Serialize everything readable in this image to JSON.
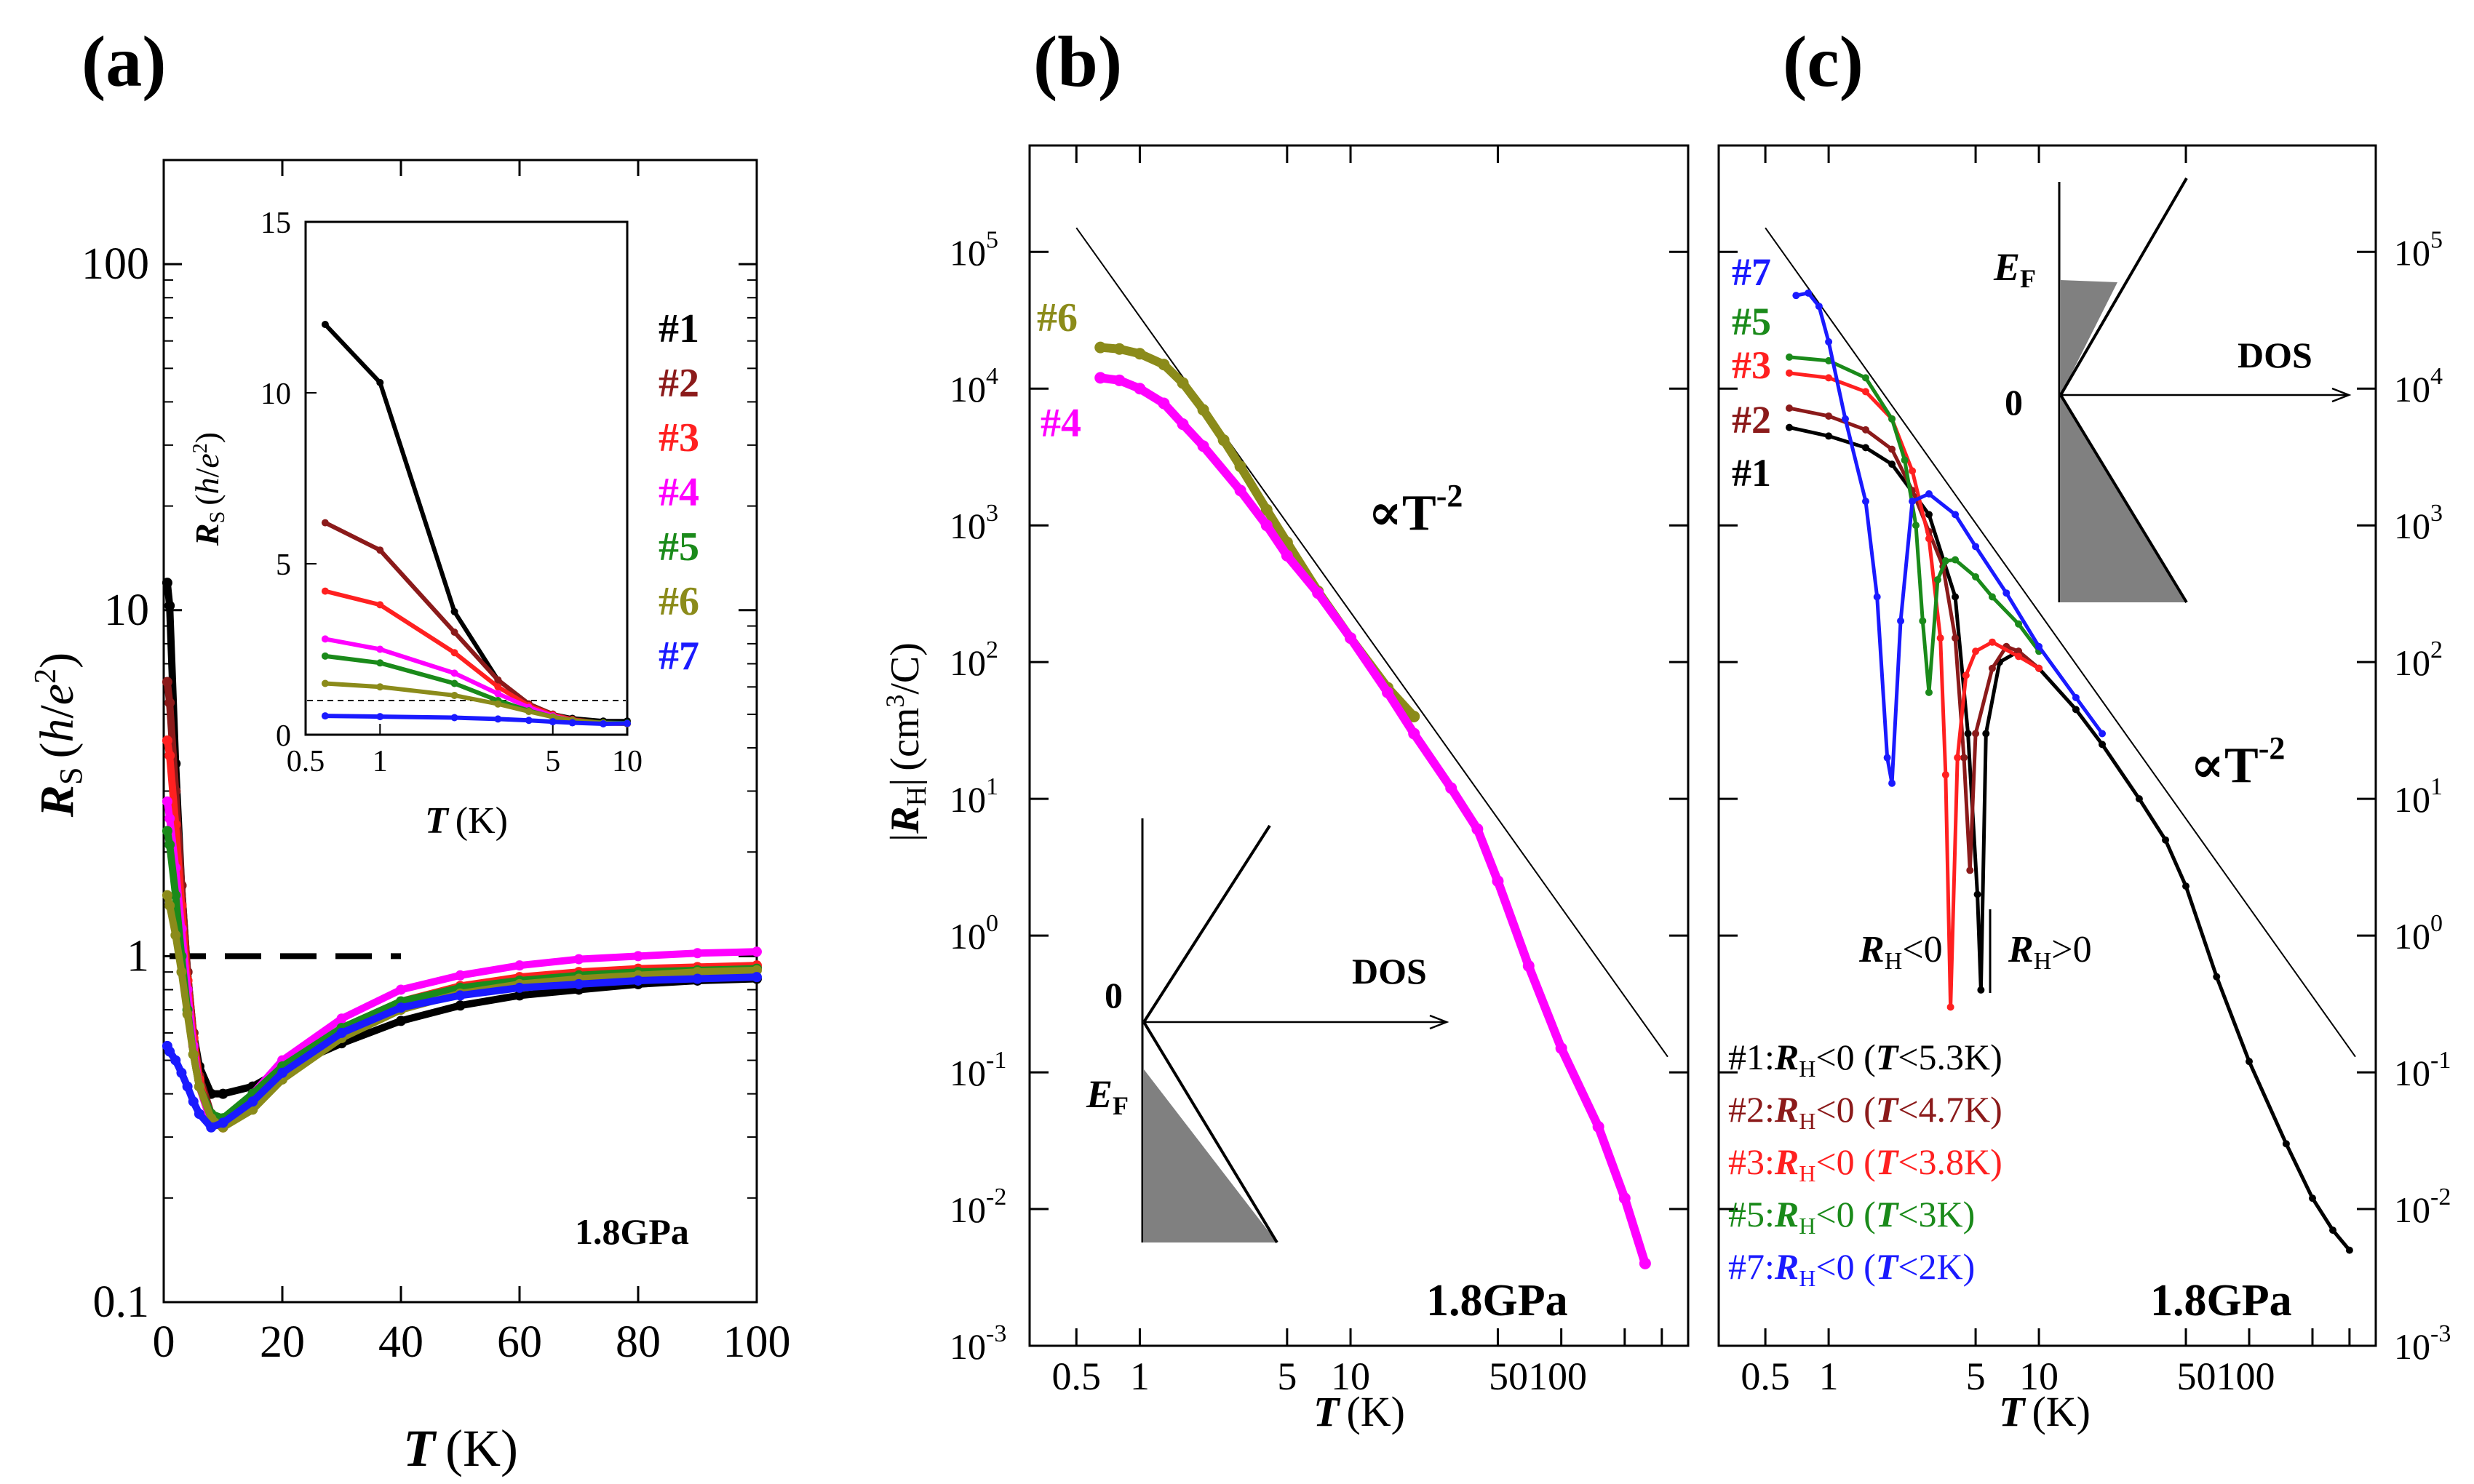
{
  "chart_data": [
    {
      "panel": "a",
      "type": "scatter",
      "label": "(a)",
      "xlabel_symbol": "T",
      "xlabel_unit": "(K)",
      "ylabel_symbol": "R",
      "ylabel_sub": "S",
      "ylabel_unit_open": "(",
      "ylabel_unit_h": "h",
      "ylabel_unit_slash": "/",
      "ylabel_unit_e": "e",
      "ylabel_unit_sup": "2",
      "ylabel_unit_close": ")",
      "xscale": "linear",
      "yscale": "log",
      "xlim": [
        0,
        100
      ],
      "ylim": [
        0.1,
        200
      ],
      "xticks": [
        "0",
        "20",
        "40",
        "60",
        "80",
        "100"
      ],
      "xtick_values": [
        0,
        20,
        40,
        60,
        80,
        100
      ],
      "yticks": [
        "0.1",
        "1",
        "10",
        "100"
      ],
      "ytick_values": [
        0.1,
        1,
        10,
        100
      ],
      "pressure": "1.8GPa",
      "reference_line": {
        "y": 1,
        "x": [
          0,
          40
        ]
      },
      "series": [
        {
          "name": "#1",
          "color": "#000000",
          "x": [
            0.6,
            1,
            2,
            3,
            4,
            5,
            6,
            8,
            10,
            15,
            20,
            30,
            40,
            50,
            60,
            70,
            80,
            90,
            100
          ],
          "y": [
            12,
            10.3,
            3.6,
            1.6,
            0.9,
            0.6,
            0.48,
            0.4,
            0.4,
            0.42,
            0.47,
            0.56,
            0.65,
            0.72,
            0.77,
            0.8,
            0.83,
            0.85,
            0.86
          ]
        },
        {
          "name": "#2",
          "color": "#8b1a1a",
          "x": [
            0.6,
            1,
            2,
            3,
            4,
            5,
            6,
            8,
            10,
            15,
            20,
            30,
            40,
            50,
            60,
            70,
            80,
            90,
            100
          ],
          "y": [
            6.2,
            5.4,
            3,
            1.6,
            0.9,
            0.6,
            0.45,
            0.35,
            0.33,
            0.38,
            0.47,
            0.6,
            0.72,
            0.8,
            0.85,
            0.88,
            0.9,
            0.92,
            0.93
          ]
        },
        {
          "name": "#3",
          "color": "#ff2020",
          "x": [
            0.6,
            1,
            2,
            3,
            4,
            5,
            6,
            8,
            10,
            15,
            20,
            30,
            40,
            50,
            60,
            70,
            80,
            90,
            100
          ],
          "y": [
            4.2,
            3.8,
            2.4,
            1.4,
            0.85,
            0.58,
            0.44,
            0.33,
            0.32,
            0.38,
            0.48,
            0.62,
            0.74,
            0.82,
            0.87,
            0.9,
            0.92,
            0.93,
            0.94
          ]
        },
        {
          "name": "#4",
          "color": "#ff00ff",
          "x": [
            0.6,
            1,
            2,
            3,
            4,
            5,
            6,
            8,
            10,
            15,
            20,
            30,
            40,
            50,
            60,
            70,
            80,
            90,
            100
          ],
          "y": [
            2.8,
            2.5,
            1.8,
            1.2,
            0.8,
            0.55,
            0.42,
            0.33,
            0.33,
            0.4,
            0.5,
            0.66,
            0.8,
            0.88,
            0.94,
            0.98,
            1.0,
            1.02,
            1.03
          ]
        },
        {
          "name": "#5",
          "color": "#1a8a1a",
          "x": [
            0.6,
            1,
            2,
            3,
            4,
            5,
            6,
            8,
            10,
            15,
            20,
            30,
            40,
            50,
            60,
            70,
            80,
            90,
            100
          ],
          "y": [
            2.3,
            2.1,
            1.5,
            1.0,
            0.7,
            0.52,
            0.42,
            0.35,
            0.34,
            0.4,
            0.48,
            0.62,
            0.74,
            0.81,
            0.85,
            0.88,
            0.9,
            0.91,
            0.92
          ]
        },
        {
          "name": "#6",
          "color": "#8b8b1a",
          "x": [
            0.6,
            1,
            2,
            3,
            4,
            5,
            6,
            8,
            10,
            15,
            20,
            30,
            40,
            50,
            60,
            70,
            80,
            90,
            100
          ],
          "y": [
            1.5,
            1.4,
            1.15,
            0.9,
            0.68,
            0.52,
            0.42,
            0.34,
            0.32,
            0.36,
            0.44,
            0.58,
            0.7,
            0.78,
            0.83,
            0.86,
            0.88,
            0.9,
            0.91
          ]
        },
        {
          "name": "#7",
          "color": "#1a1aff",
          "x": [
            0.6,
            1,
            2,
            3,
            4,
            5,
            6,
            8,
            10,
            15,
            20,
            30,
            40,
            50,
            60,
            70,
            80,
            90,
            100
          ],
          "y": [
            0.55,
            0.53,
            0.5,
            0.46,
            0.42,
            0.38,
            0.35,
            0.32,
            0.33,
            0.38,
            0.46,
            0.6,
            0.71,
            0.77,
            0.81,
            0.83,
            0.85,
            0.86,
            0.87
          ]
        }
      ],
      "inset": {
        "xscale": "log",
        "xlim": [
          0.5,
          10
        ],
        "ylim": [
          0,
          15
        ],
        "xticks": [
          "0.5",
          "1",
          "5",
          "10"
        ],
        "xtick_values": [
          0.5,
          1,
          5,
          10
        ],
        "yticks": [
          "0",
          "5",
          "10",
          "15"
        ],
        "ytick_values": [
          0,
          5,
          10,
          15
        ],
        "xlabel_symbol": "T",
        "xlabel_unit": "(K)",
        "ylabel_symbol": "R",
        "ylabel_sub": "S",
        "ylabel_unit_open": "(",
        "ylabel_unit_h": "h",
        "ylabel_unit_slash": "/",
        "ylabel_unit_e": "e",
        "ylabel_unit_sup": "2",
        "ylabel_unit_close": ")",
        "reference_line": {
          "y": 1
        }
      }
    },
    {
      "panel": "b",
      "type": "scatter",
      "label": "(b)",
      "xlabel_symbol": "T",
      "xlabel_unit": "(K)",
      "ylabel_bar": "|",
      "ylabel_symbol": "R",
      "ylabel_sub": "H",
      "ylabel_unit": "(cm",
      "ylabel_unit_sup": "3",
      "ylabel_unit_end": "/C)",
      "xscale": "log",
      "yscale": "log",
      "xlim": [
        0.3,
        400
      ],
      "ylim": [
        0.001,
        600000
      ],
      "xticks": [
        "0.5",
        "1",
        "5",
        "10",
        "50100"
      ],
      "xtick_values": [
        0.5,
        1,
        5,
        10,
        50
      ],
      "yticks": [
        {
          "base": "10",
          "exp": "-3",
          "v": 0.001
        },
        {
          "base": "10",
          "exp": "-2",
          "v": 0.01
        },
        {
          "base": "10",
          "exp": "-1",
          "v": 0.1
        },
        {
          "base": "10",
          "exp": "0",
          "v": 1
        },
        {
          "base": "10",
          "exp": "1",
          "v": 10
        },
        {
          "base": "10",
          "exp": "2",
          "v": 100
        },
        {
          "base": "10",
          "exp": "3",
          "v": 1000
        },
        {
          "base": "10",
          "exp": "4",
          "v": 10000
        },
        {
          "base": "10",
          "exp": "5",
          "v": 100000
        }
      ],
      "pressure": "1.8GPa",
      "powerlaw": {
        "label": "∝T",
        "exp": "-2",
        "x": [
          0.5,
          320
        ],
        "y": [
          150000,
          0.13
        ]
      },
      "dos_inset": {
        "zero": "0",
        "axis": "DOS",
        "ef": "E",
        "ef_sub": "F"
      },
      "series": [
        {
          "name": "#6",
          "color": "#8b8b1a",
          "x": [
            0.65,
            0.8,
            1,
            1.3,
            1.6,
            2,
            2.5,
            3,
            4,
            5,
            7,
            10,
            15,
            20
          ],
          "y": [
            20000,
            19500,
            18000,
            15000,
            11000,
            7000,
            4200,
            2700,
            1300,
            750,
            330,
            150,
            65,
            40
          ]
        },
        {
          "name": "#4",
          "color": "#ff00ff",
          "x": [
            0.65,
            0.8,
            1,
            1.3,
            1.6,
            2,
            3,
            4,
            5,
            7,
            10,
            15,
            20,
            30,
            40,
            50,
            70,
            100,
            150,
            200,
            250
          ],
          "y": [
            12000,
            11500,
            10000,
            7800,
            5500,
            3800,
            1800,
            1000,
            600,
            320,
            150,
            60,
            30,
            12,
            6,
            2.5,
            0.6,
            0.15,
            0.04,
            0.012,
            0.004
          ]
        }
      ]
    },
    {
      "panel": "c",
      "type": "scatter",
      "label": "(c)",
      "xlabel_symbol": "T",
      "xlabel_unit": "(K)",
      "xscale": "log",
      "yscale": "log",
      "xlim": [
        0.3,
        400
      ],
      "ylim": [
        0.001,
        600000
      ],
      "xticks": [
        "0.5",
        "1",
        "5",
        "10",
        "50100"
      ],
      "xtick_values": [
        0.5,
        1,
        5,
        10,
        50
      ],
      "yticks": [
        {
          "base": "10",
          "exp": "-3",
          "v": 0.001
        },
        {
          "base": "10",
          "exp": "-2",
          "v": 0.01
        },
        {
          "base": "10",
          "exp": "-1",
          "v": 0.1
        },
        {
          "base": "10",
          "exp": "0",
          "v": 1
        },
        {
          "base": "10",
          "exp": "1",
          "v": 10
        },
        {
          "base": "10",
          "exp": "2",
          "v": 100
        },
        {
          "base": "10",
          "exp": "3",
          "v": 1000
        },
        {
          "base": "10",
          "exp": "4",
          "v": 10000
        },
        {
          "base": "10",
          "exp": "5",
          "v": 100000
        }
      ],
      "pressure": "1.8GPa",
      "powerlaw": {
        "label": "∝T",
        "exp": "-2",
        "x": [
          0.5,
          320
        ],
        "y": [
          150000,
          0.13
        ]
      },
      "dos_inset": {
        "zero": "0",
        "axis": "DOS",
        "ef": "E",
        "ef_sub": "F"
      },
      "sign_labels": {
        "sym": "R",
        "sub": "H",
        "neg": "<0",
        "pos": ">0"
      },
      "legend_entries": [
        {
          "id": "#1",
          "colon": ":",
          "sym": "R",
          "sub": "H",
          "rel": "<0 (",
          "tsym": "T",
          "cond": "<5.3K)",
          "color": "#000000"
        },
        {
          "id": "#2",
          "colon": ":",
          "sym": "R",
          "sub": "H",
          "rel": "<0 (",
          "tsym": "T",
          "cond": "<4.7K)",
          "color": "#8b1a1a"
        },
        {
          "id": "#3",
          "colon": ":",
          "sym": "R",
          "sub": "H",
          "rel": "<0 (",
          "tsym": "T",
          "cond": "<3.8K)",
          "color": "#ff2020"
        },
        {
          "id": "#5",
          "colon": ":",
          "sym": "R",
          "sub": "H",
          "rel": "<0 (",
          "tsym": "T",
          "cond": "<3K)",
          "color": "#1a8a1a"
        },
        {
          "id": "#7",
          "colon": ":",
          "sym": "R",
          "sub": "H",
          "rel": "<0 (",
          "tsym": "T",
          "cond": "<2K)",
          "color": "#1a1aff"
        }
      ],
      "series": [
        {
          "name": "#1",
          "color": "#000000",
          "x": [
            0.65,
            1,
            1.5,
            2,
            3,
            4,
            4.6,
            5.1,
            5.3,
            5.6,
            6.5,
            8,
            10,
            15,
            20,
            30,
            40,
            50,
            70,
            100,
            150,
            200,
            250,
            300
          ],
          "y": [
            5200,
            4500,
            3700,
            2800,
            1200,
            300,
            30,
            2,
            0.4,
            30,
            100,
            120,
            90,
            45,
            25,
            10,
            5,
            2.3,
            0.5,
            0.12,
            0.03,
            0.012,
            0.007,
            0.005
          ]
        },
        {
          "name": "#2",
          "color": "#8b1a1a",
          "x": [
            0.65,
            1,
            1.5,
            2,
            2.5,
            3,
            3.5,
            4,
            4.4,
            4.7,
            5,
            6,
            7,
            8,
            10
          ],
          "y": [
            7200,
            6300,
            5000,
            3600,
            1800,
            900,
            500,
            150,
            20,
            3,
            30,
            90,
            130,
            120,
            90
          ]
        },
        {
          "name": "#3",
          "color": "#ff2020",
          "x": [
            0.65,
            1,
            1.5,
            2,
            2.5,
            3,
            3.4,
            3.6,
            3.8,
            4.1,
            4.5,
            5,
            6,
            8,
            10
          ],
          "y": [
            13000,
            12000,
            9500,
            6000,
            2500,
            800,
            150,
            15,
            0.3,
            20,
            80,
            120,
            140,
            110,
            90
          ]
        },
        {
          "name": "#5",
          "color": "#1a8a1a",
          "x": [
            0.65,
            1,
            1.5,
            2,
            2.3,
            2.6,
            2.8,
            3,
            3.3,
            3.6,
            4,
            5,
            6,
            8,
            10
          ],
          "y": [
            17000,
            16000,
            12000,
            6000,
            3000,
            1000,
            200,
            60,
            400,
            550,
            560,
            420,
            300,
            190,
            120
          ]
        },
        {
          "name": "#7",
          "color": "#1a1aff",
          "x": [
            0.7,
            0.8,
            0.9,
            1,
            1.2,
            1.5,
            1.7,
            1.9,
            2,
            2.2,
            2.5,
            3,
            4,
            5,
            7,
            10,
            15,
            20
          ],
          "y": [
            48000,
            50000,
            40000,
            22000,
            6000,
            1500,
            300,
            20,
            13,
            200,
            1500,
            1700,
            1200,
            700,
            320,
            130,
            55,
            30
          ]
        }
      ]
    }
  ]
}
